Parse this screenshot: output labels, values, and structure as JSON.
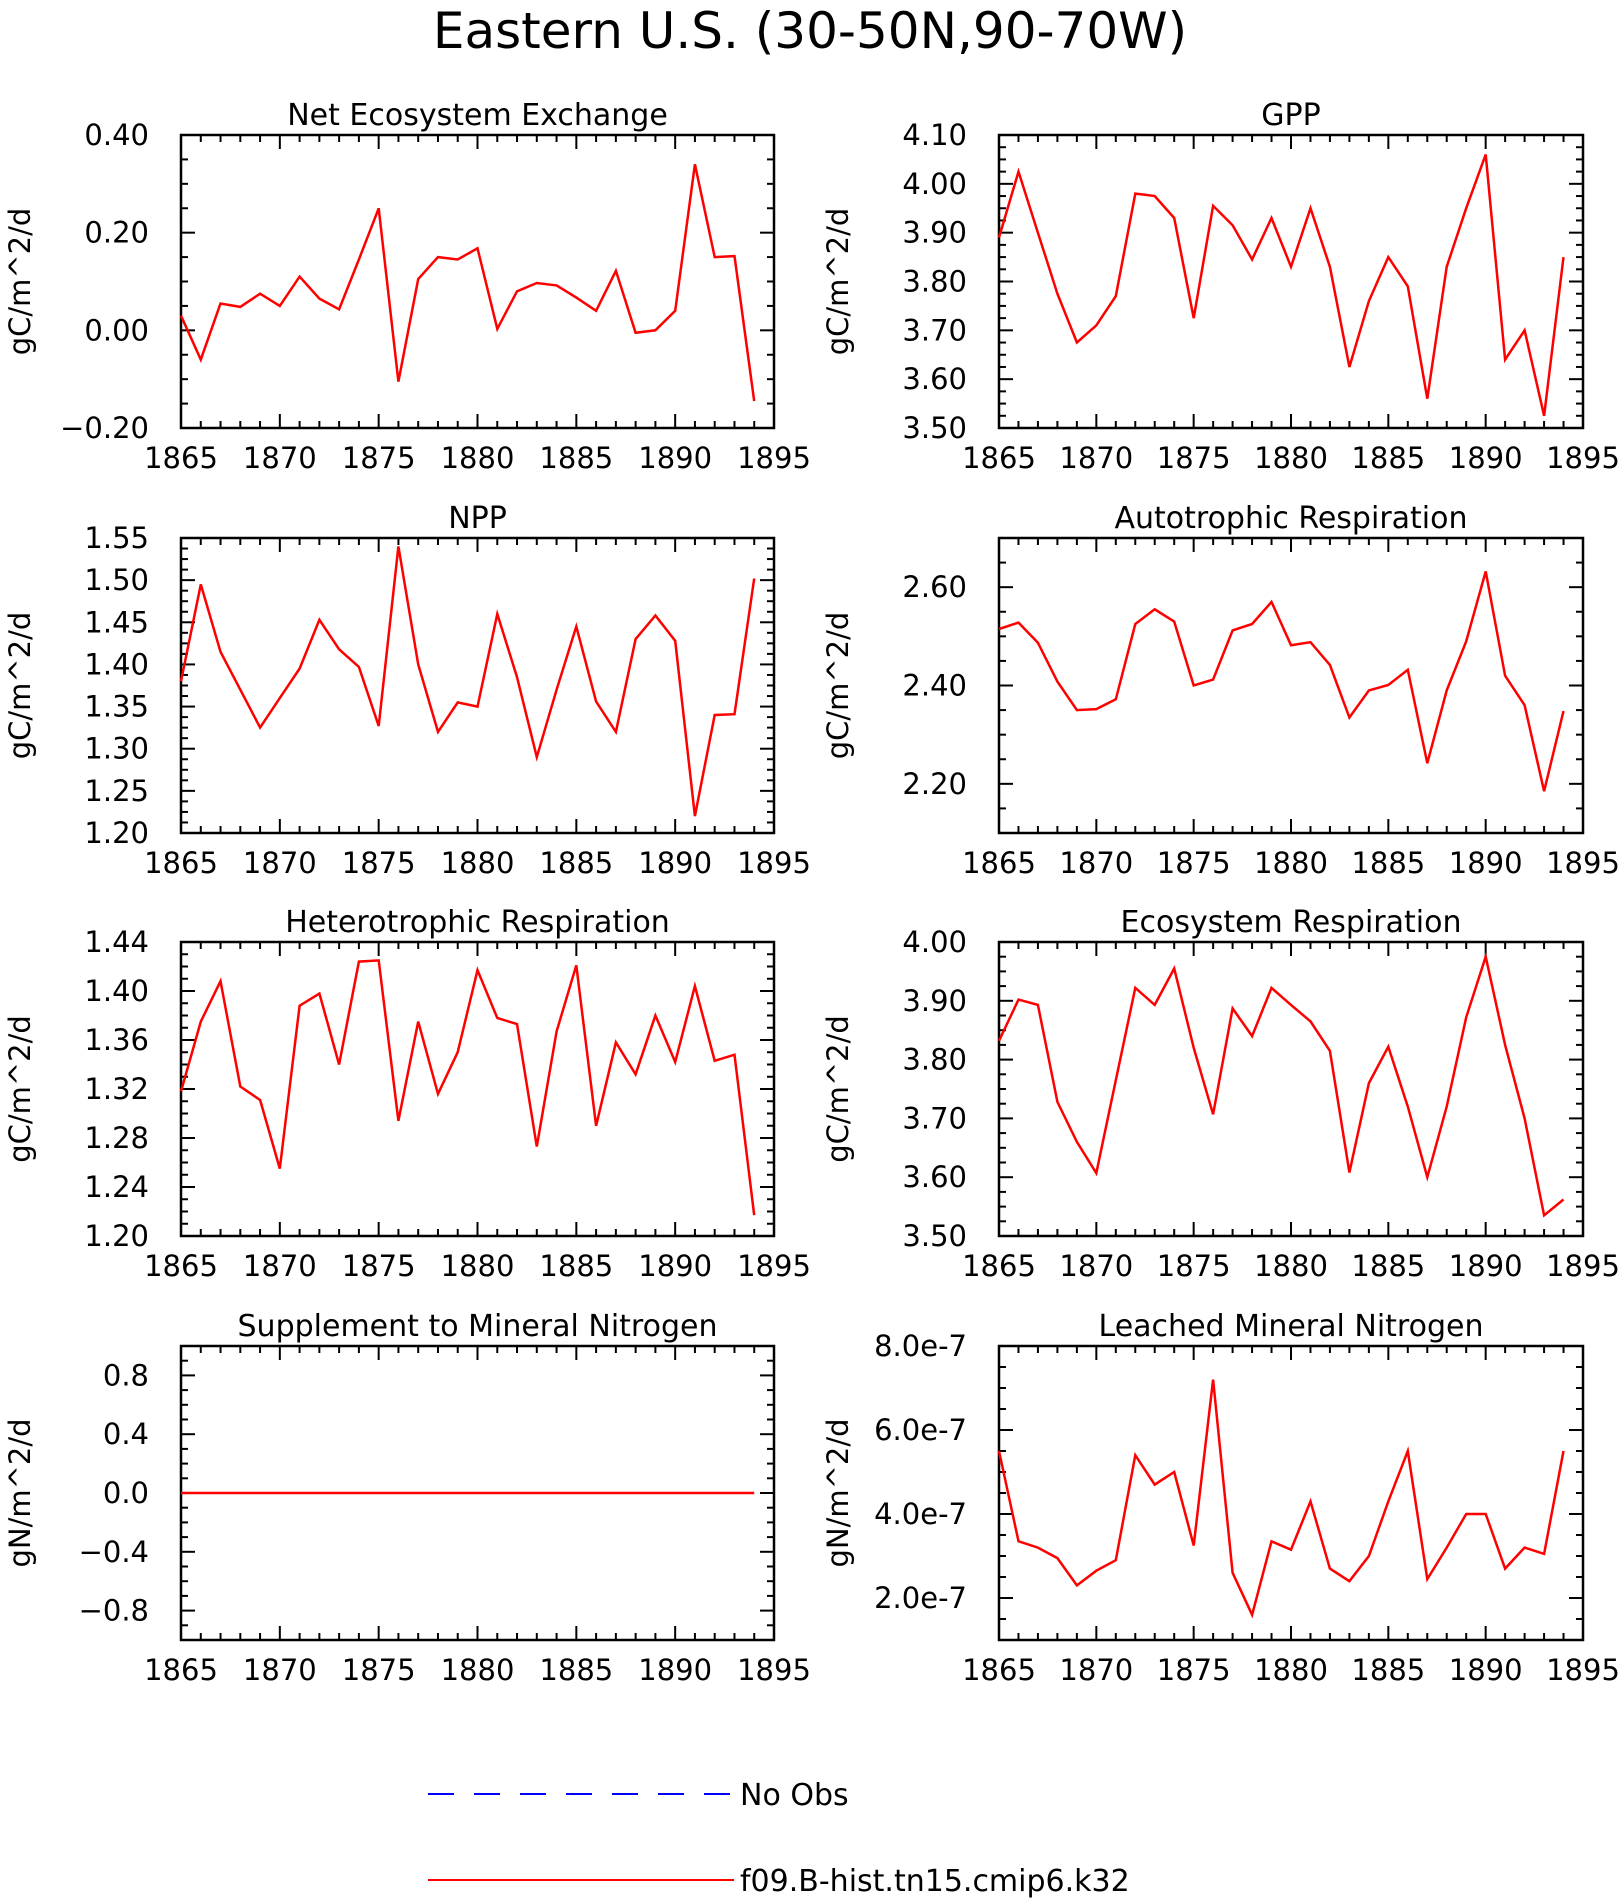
{
  "title": "Eastern U.S. (30-50N,90-70W)",
  "legend": [
    {
      "label": "No Obs",
      "color": "#0000ff",
      "dash": true
    },
    {
      "label": "f09.B-hist.tn15.cmip6.k32",
      "color": "#ff0000",
      "dash": false
    }
  ],
  "chart_data": [
    {
      "type": "line",
      "title": "Net Ecosystem Exchange",
      "ylabel": "gC/m^2/d",
      "xlim": [
        1865,
        1895
      ],
      "ylim": [
        -0.2,
        0.4
      ],
      "xticks": [
        "1865",
        "1870",
        "1875",
        "1880",
        "1885",
        "1890",
        "1895"
      ],
      "yticks": [
        "-0.20",
        "0.00",
        "0.20",
        "0.40"
      ],
      "x": [
        1865,
        1866,
        1867,
        1868,
        1869,
        1870,
        1871,
        1872,
        1873,
        1874,
        1875,
        1876,
        1877,
        1878,
        1879,
        1880,
        1881,
        1882,
        1883,
        1884,
        1885,
        1886,
        1887,
        1888,
        1889,
        1890,
        1891,
        1892,
        1893,
        1894
      ],
      "series": [
        {
          "values": [
            0.03,
            -0.06,
            0.055,
            0.048,
            0.075,
            0.05,
            0.11,
            0.065,
            0.043,
            0.145,
            0.25,
            -0.105,
            0.105,
            0.15,
            0.145,
            0.168,
            0.003,
            0.08,
            0.097,
            0.092,
            0.067,
            0.04,
            0.122,
            -0.005,
            0.0,
            0.04,
            0.34,
            0.15,
            0.152,
            -0.145
          ],
          "color": "#ff0000"
        }
      ]
    },
    {
      "type": "line",
      "title": "GPP",
      "ylabel": "gC/m^2/d",
      "xlim": [
        1865,
        1895
      ],
      "ylim": [
        3.5,
        4.1
      ],
      "xticks": [
        "1865",
        "1870",
        "1875",
        "1880",
        "1885",
        "1890",
        "1895"
      ],
      "yticks": [
        "3.50",
        "3.60",
        "3.70",
        "3.80",
        "3.90",
        "4.00",
        "4.10"
      ],
      "x": [
        1865,
        1866,
        1867,
        1868,
        1869,
        1870,
        1871,
        1872,
        1873,
        1874,
        1875,
        1876,
        1877,
        1878,
        1879,
        1880,
        1881,
        1882,
        1883,
        1884,
        1885,
        1886,
        1887,
        1888,
        1889,
        1890,
        1891,
        1892,
        1893,
        1894
      ],
      "series": [
        {
          "values": [
            3.89,
            4.025,
            3.9,
            3.775,
            3.675,
            3.71,
            3.77,
            3.98,
            3.975,
            3.93,
            3.725,
            3.955,
            3.915,
            3.845,
            3.93,
            3.83,
            3.95,
            3.83,
            3.625,
            3.76,
            3.85,
            3.79,
            3.56,
            3.83,
            3.95,
            4.06,
            3.64,
            3.7,
            3.525,
            3.85
          ],
          "color": "#ff0000"
        }
      ]
    },
    {
      "type": "line",
      "title": "NPP",
      "ylabel": "gC/m^2/d",
      "xlim": [
        1865,
        1895
      ],
      "ylim": [
        1.2,
        1.55
      ],
      "xticks": [
        "1865",
        "1870",
        "1875",
        "1880",
        "1885",
        "1890",
        "1895"
      ],
      "yticks": [
        "1.20",
        "1.25",
        "1.30",
        "1.35",
        "1.40",
        "1.45",
        "1.50",
        "1.55"
      ],
      "x": [
        1865,
        1866,
        1867,
        1868,
        1869,
        1870,
        1871,
        1872,
        1873,
        1874,
        1875,
        1876,
        1877,
        1878,
        1879,
        1880,
        1881,
        1882,
        1883,
        1884,
        1885,
        1886,
        1887,
        1888,
        1889,
        1890,
        1891,
        1892,
        1893,
        1894
      ],
      "series": [
        {
          "values": [
            1.38,
            1.495,
            1.415,
            1.37,
            1.325,
            1.36,
            1.395,
            1.453,
            1.418,
            1.397,
            1.327,
            1.54,
            1.4,
            1.32,
            1.355,
            1.35,
            1.46,
            1.385,
            1.29,
            1.37,
            1.445,
            1.356,
            1.32,
            1.43,
            1.458,
            1.428,
            1.22,
            1.34,
            1.341,
            1.502
          ],
          "color": "#ff0000"
        }
      ]
    },
    {
      "type": "line",
      "title": "Autotrophic Respiration",
      "ylabel": "gC/m^2/d",
      "xlim": [
        1865,
        1895
      ],
      "ylim": [
        2.1,
        2.7
      ],
      "xticks": [
        "1865",
        "1870",
        "1875",
        "1880",
        "1885",
        "1890",
        "1895"
      ],
      "yticks": [
        "2.20",
        "2.40",
        "2.60"
      ],
      "x": [
        1865,
        1866,
        1867,
        1868,
        1869,
        1870,
        1871,
        1872,
        1873,
        1874,
        1875,
        1876,
        1877,
        1878,
        1879,
        1880,
        1881,
        1882,
        1883,
        1884,
        1885,
        1886,
        1887,
        1888,
        1889,
        1890,
        1891,
        1892,
        1893,
        1894
      ],
      "series": [
        {
          "values": [
            2.515,
            2.528,
            2.487,
            2.408,
            2.35,
            2.352,
            2.372,
            2.525,
            2.555,
            2.53,
            2.4,
            2.412,
            2.512,
            2.525,
            2.57,
            2.482,
            2.488,
            2.442,
            2.335,
            2.39,
            2.401,
            2.432,
            2.242,
            2.39,
            2.49,
            2.632,
            2.42,
            2.36,
            2.185,
            2.348
          ],
          "color": "#ff0000"
        }
      ]
    },
    {
      "type": "line",
      "title": "Heterotrophic Respiration",
      "ylabel": "gC/m^2/d",
      "xlim": [
        1865,
        1895
      ],
      "ylim": [
        1.2,
        1.44
      ],
      "xticks": [
        "1865",
        "1870",
        "1875",
        "1880",
        "1885",
        "1890",
        "1895"
      ],
      "yticks": [
        "1.20",
        "1.24",
        "1.28",
        "1.32",
        "1.36",
        "1.40",
        "1.44"
      ],
      "x": [
        1865,
        1866,
        1867,
        1868,
        1869,
        1870,
        1871,
        1872,
        1873,
        1874,
        1875,
        1876,
        1877,
        1878,
        1879,
        1880,
        1881,
        1882,
        1883,
        1884,
        1885,
        1886,
        1887,
        1888,
        1889,
        1890,
        1891,
        1892,
        1893,
        1894
      ],
      "series": [
        {
          "values": [
            1.318,
            1.375,
            1.408,
            1.322,
            1.311,
            1.255,
            1.388,
            1.398,
            1.34,
            1.424,
            1.425,
            1.294,
            1.375,
            1.316,
            1.35,
            1.417,
            1.378,
            1.373,
            1.273,
            1.367,
            1.421,
            1.29,
            1.358,
            1.332,
            1.38,
            1.342,
            1.404,
            1.343,
            1.348,
            1.217
          ],
          "color": "#ff0000"
        }
      ]
    },
    {
      "type": "line",
      "title": "Ecosystem Respiration",
      "ylabel": "gC/m^2/d",
      "xlim": [
        1865,
        1895
      ],
      "ylim": [
        3.5,
        4.0
      ],
      "xticks": [
        "1865",
        "1870",
        "1875",
        "1880",
        "1885",
        "1890",
        "1895"
      ],
      "yticks": [
        "3.50",
        "3.60",
        "3.70",
        "3.80",
        "3.90",
        "4.00"
      ],
      "x": [
        1865,
        1866,
        1867,
        1868,
        1869,
        1870,
        1871,
        1872,
        1873,
        1874,
        1875,
        1876,
        1877,
        1878,
        1879,
        1880,
        1881,
        1882,
        1883,
        1884,
        1885,
        1886,
        1887,
        1888,
        1889,
        1890,
        1891,
        1892,
        1893,
        1894
      ],
      "series": [
        {
          "values": [
            3.832,
            3.902,
            3.893,
            3.728,
            3.66,
            3.607,
            3.765,
            3.922,
            3.893,
            3.955,
            3.82,
            3.707,
            3.887,
            3.84,
            3.922,
            3.893,
            3.865,
            3.815,
            3.608,
            3.76,
            3.822,
            3.72,
            3.6,
            3.72,
            3.872,
            3.975,
            3.825,
            3.7,
            3.535,
            3.562
          ],
          "color": "#ff0000"
        }
      ]
    },
    {
      "type": "line",
      "title": "Supplement to Mineral Nitrogen",
      "ylabel": "gN/m^2/d",
      "xlim": [
        1865,
        1895
      ],
      "ylim": [
        -1.0,
        1.0
      ],
      "xticks": [
        "1865",
        "1870",
        "1875",
        "1880",
        "1885",
        "1890",
        "1895"
      ],
      "yticks": [
        "-0.8",
        "-0.4",
        "0.0",
        "0.4",
        "0.8"
      ],
      "x": [
        1865,
        1866,
        1867,
        1868,
        1869,
        1870,
        1871,
        1872,
        1873,
        1874,
        1875,
        1876,
        1877,
        1878,
        1879,
        1880,
        1881,
        1882,
        1883,
        1884,
        1885,
        1886,
        1887,
        1888,
        1889,
        1890,
        1891,
        1892,
        1893,
        1894
      ],
      "series": [
        {
          "values": [
            0,
            0,
            0,
            0,
            0,
            0,
            0,
            0,
            0,
            0,
            0,
            0,
            0,
            0,
            0,
            0,
            0,
            0,
            0,
            0,
            0,
            0,
            0,
            0,
            0,
            0,
            0,
            0,
            0,
            0
          ],
          "color": "#ff0000"
        }
      ]
    },
    {
      "type": "line",
      "title": "Leached Mineral Nitrogen",
      "ylabel": "gN/m^2/d",
      "xlim": [
        1865,
        1895
      ],
      "ylim": [
        1e-07,
        8e-07
      ],
      "xticks": [
        "1865",
        "1870",
        "1875",
        "1880",
        "1885",
        "1890",
        "1895"
      ],
      "yticks": [
        "2.0e-7",
        "4.0e-7",
        "6.0e-7",
        "8.0e-7"
      ],
      "ytickvals": [
        2e-07,
        4e-07,
        6e-07,
        8e-07
      ],
      "x": [
        1865,
        1866,
        1867,
        1868,
        1869,
        1870,
        1871,
        1872,
        1873,
        1874,
        1875,
        1876,
        1877,
        1878,
        1879,
        1880,
        1881,
        1882,
        1883,
        1884,
        1885,
        1886,
        1887,
        1888,
        1889,
        1890,
        1891,
        1892,
        1893,
        1894
      ],
      "series": [
        {
          "values": [
            5.5e-07,
            3.35e-07,
            3.2e-07,
            2.95e-07,
            2.3e-07,
            2.65e-07,
            2.9e-07,
            5.4e-07,
            4.7e-07,
            5e-07,
            3.25e-07,
            7.2e-07,
            2.6e-07,
            1.6e-07,
            3.35e-07,
            3.15e-07,
            4.3e-07,
            2.7e-07,
            2.4e-07,
            3e-07,
            4.3e-07,
            5.5e-07,
            2.45e-07,
            3.2e-07,
            4e-07,
            4e-07,
            2.7e-07,
            3.2e-07,
            3.05e-07,
            5.5e-07
          ],
          "color": "#ff0000"
        }
      ]
    }
  ]
}
